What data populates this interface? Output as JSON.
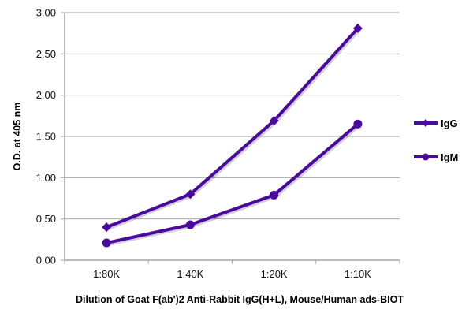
{
  "chart_data": {
    "type": "line",
    "title": "",
    "xlabel": "Dilution of Goat F(ab')2 Anti-Rabbit IgG(H+L), Mouse/Human ads-BIOT",
    "ylabel": "O.D. at 405 nm",
    "categories": [
      "1:80K",
      "1:40K",
      "1:20K",
      "1:10K"
    ],
    "ylim": [
      0,
      3.0
    ],
    "yticks": [
      "0.00",
      "0.50",
      "1.00",
      "1.50",
      "2.00",
      "2.50",
      "3.00"
    ],
    "grid": true,
    "legend_position": "right",
    "series": [
      {
        "name": "IgG",
        "marker": "diamond",
        "color": "#4B0A9E",
        "values": [
          0.4,
          0.8,
          1.69,
          2.81
        ]
      },
      {
        "name": "IgM",
        "marker": "circle",
        "color": "#4B0A9E",
        "values": [
          0.21,
          0.43,
          0.79,
          1.65
        ]
      }
    ]
  }
}
